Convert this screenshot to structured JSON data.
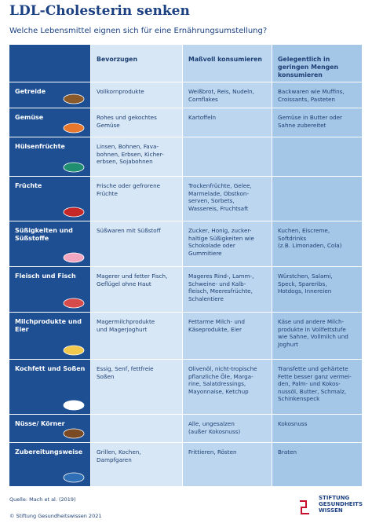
{
  "header": {
    "title": "LDL-Cholesterin senken",
    "subtitle": "Welche Lebensmittel eignen sich für eine Ernährungsumstellung?"
  },
  "table": {
    "columns": [
      "Bevorzugen",
      "Maßvoll konsumieren",
      "Gelegentlich in\ngeringen Mengen\nkonsumieren"
    ],
    "rows": [
      {
        "category": "Getreide",
        "cells": [
          "Vollkornprodukte",
          "Weißbrot, Reis, Nudeln,\nCornflakes",
          "Backwaren wie Muffins,\nCroissants, Pasteten"
        ]
      },
      {
        "category": "Gemüse",
        "cells": [
          "Rohes und gekochtes\nGemüse",
          "Kartoffeln",
          "Gemüse in Butter oder\nSahne zubereitet"
        ]
      },
      {
        "category": "Hülsenfrüchte",
        "cells": [
          "Linsen, Bohnen, Fava-\nbohnen, Erbsen, Kicher-\nerbsen, Sojabohnen",
          null,
          null
        ]
      },
      {
        "category": "Früchte",
        "cells": [
          "Frische oder gefrorene\nFrüchte",
          "Trockenfrüchte, Gelee,\nMarmelade, Obstkon-\nserven, Sorbets,\nWassereis, Fruchtsaft",
          null
        ]
      },
      {
        "category": "Süßigkeiten und\nSüßstoffe",
        "cells": [
          "Süßwaren mit Süßstoff",
          "Zucker, Honig, zucker-\nhaltige Süßigkeiten wie\nSchokolade oder\nGummitiere",
          "Kuchen, Eiscreme,\nSoftdrinks\n(z.B. Limonaden, Cola)"
        ]
      },
      {
        "category": "Fleisch und Fisch",
        "cells": [
          "Magerer und fetter Fisch,\nGeflügel ohne Haut",
          "Mageres Rind-, Lamm-,\nSchweine- und Kalb-\nfleisch, Meeresfrüchte,\nSchalentiere",
          "Würstchen, Salami,\nSpeck, Spareribs,\nHotdogs, Innereien"
        ]
      },
      {
        "category": "Milchprodukte und\nEier",
        "cells": [
          "Magermilchprodukte\nund Magerjoghurt",
          "Fettarme Milch- und\nKäseprodukte, Eier",
          "Käse und andere Milch-\nprodukte in Vollfettstufe\nwie Sahne, Vollmilch und\nJoghurt"
        ]
      },
      {
        "category": "Kochfett und Soßen",
        "cells": [
          "Essig, Senf, fettfreie\nSoßen",
          "Olivenöl, nicht-tropische\npflanzliche Öle, Marga-\nrine, Salatdressings,\nMayonnaise, Ketchup",
          "Transfette und gehärtete\nFette besser ganz vermei-\nden, Palm- und Kokos-\nnussöl, Butter, Schmalz,\nSchinkenspeck"
        ]
      },
      {
        "category": "Nüsse/ Körner",
        "cells": [
          null,
          "Alle, ungesalzen\n(außer Kokosnuss)",
          "Kokosnuss"
        ]
      },
      {
        "category": "Zubereitungsweise",
        "cells": [
          "Grillen, Kochen,\nDampfgaren",
          "Frittieren, Rösten",
          "Braten"
        ]
      }
    ]
  },
  "footer": {
    "source": "Quelle: Mach et al. (2019)",
    "copyright": "© Stiftung Gesundheitswissen 2021",
    "logo": [
      "STIFTUNG",
      "GESUNDHEITS",
      "WISSEN"
    ]
  }
}
